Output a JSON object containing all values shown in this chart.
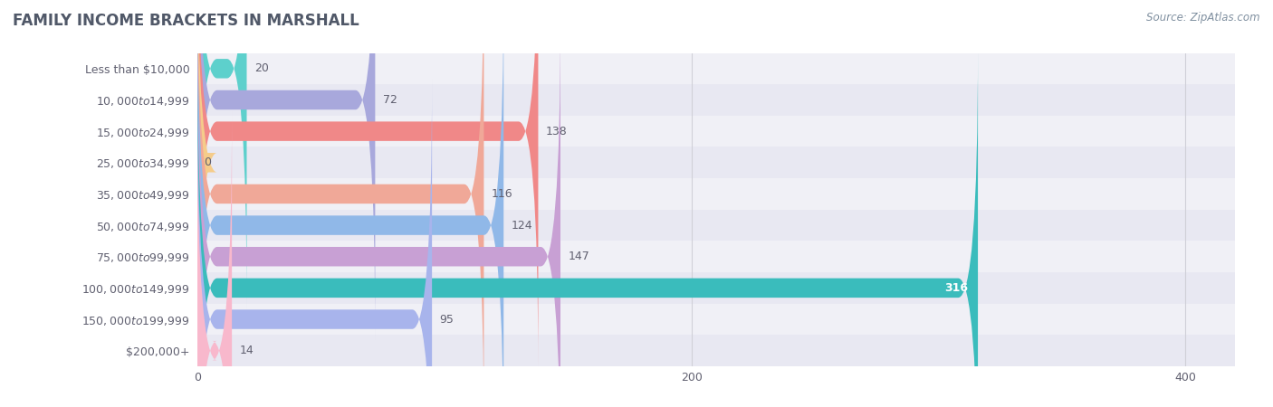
{
  "title": "FAMILY INCOME BRACKETS IN MARSHALL",
  "source": "Source: ZipAtlas.com",
  "categories": [
    "Less than $10,000",
    "$10,000 to $14,999",
    "$15,000 to $24,999",
    "$25,000 to $34,999",
    "$35,000 to $49,999",
    "$50,000 to $74,999",
    "$75,000 to $99,999",
    "$100,000 to $149,999",
    "$150,000 to $199,999",
    "$200,000+"
  ],
  "values": [
    20,
    72,
    138,
    0,
    116,
    124,
    147,
    316,
    95,
    14
  ],
  "bar_colors": [
    "#5dd0cc",
    "#a8a8dc",
    "#f08888",
    "#f5cc8a",
    "#f0a898",
    "#90b8e8",
    "#c8a0d4",
    "#3abcbc",
    "#a8b4ec",
    "#f8b8cc"
  ],
  "row_colors_even": "#f0f0f6",
  "row_colors_odd": "#e8e8f2",
  "xlim_max": 420,
  "xticks": [
    0,
    200,
    400
  ],
  "title_color": "#505868",
  "label_color": "#606070",
  "value_color": "#606070",
  "value_color_inside": "#ffffff",
  "source_color": "#8090a0",
  "background_color": "#ffffff",
  "grid_color": "#d0d0d8"
}
